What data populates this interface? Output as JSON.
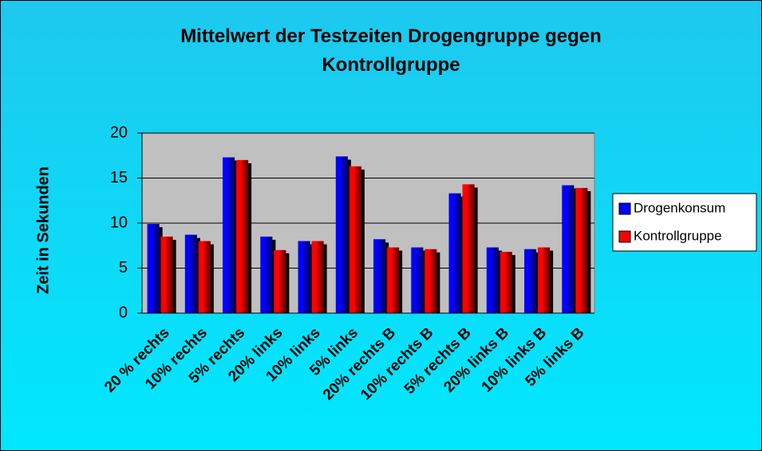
{
  "chart_data": {
    "type": "bar",
    "title": "Mittelwert der Testzeiten Drogengruppe gegen Kontrollgruppe",
    "y_label": "Zeit in Sekunden",
    "categories": [
      "20 % rechts",
      "10% rechts",
      "5% rechts",
      "20% links",
      "10% links",
      "5% links",
      "20% rechts B",
      "10% rechts B",
      "5% rechts B",
      "20% links B",
      "10% links B",
      "5% links B"
    ],
    "series": [
      {
        "name": "Drogenkonsum",
        "color": "#0000ff",
        "values": [
          9.9,
          8.7,
          17.3,
          8.5,
          8.0,
          17.4,
          8.2,
          7.3,
          13.3,
          7.3,
          7.1,
          14.2
        ]
      },
      {
        "name": "Kontrollgruppe",
        "color": "#ff0000",
        "values": [
          8.5,
          8.0,
          17.0,
          7.0,
          8.0,
          16.3,
          7.3,
          7.1,
          14.3,
          6.8,
          7.3,
          13.9
        ]
      }
    ],
    "ylim": [
      0,
      20
    ],
    "yticks": [
      0,
      5,
      10,
      15,
      20
    ],
    "grid": true,
    "legend": "right"
  }
}
